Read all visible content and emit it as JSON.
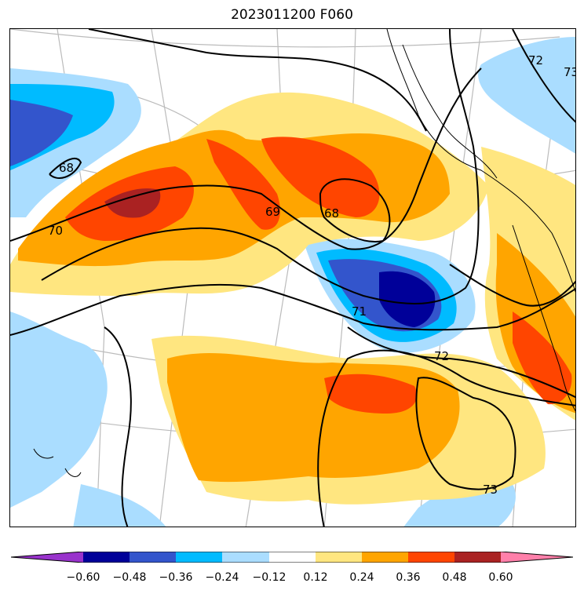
{
  "title": "2023011200 F060",
  "colors": {
    "c_m060": "#9933cc",
    "c_m048": "#000099",
    "c_m036": "#3355cc",
    "c_m024": "#00bbff",
    "c_m012": "#aaddff",
    "c_zero": "#ffffff",
    "c_p012": "#ffe680",
    "c_p024": "#ffa500",
    "c_p036": "#ff4500",
    "c_p048": "#aa2222",
    "c_p060": "#ff80aa"
  },
  "colorbar": {
    "colors": [
      "#9933cc",
      "#000099",
      "#3355cc",
      "#00bbff",
      "#aaddff",
      "#ffffff",
      "#ffe680",
      "#ffa500",
      "#ff4500",
      "#aa2222",
      "#ff80aa"
    ],
    "tick_labels": [
      "−0.60",
      "−0.48",
      "−0.36",
      "−0.24",
      "−0.12",
      "0.12",
      "0.24",
      "0.36",
      "0.48",
      "0.60"
    ]
  },
  "contour_labels": [
    "68",
    "70",
    "69",
    "68",
    "71",
    "72",
    "73",
    "72",
    "73"
  ]
}
